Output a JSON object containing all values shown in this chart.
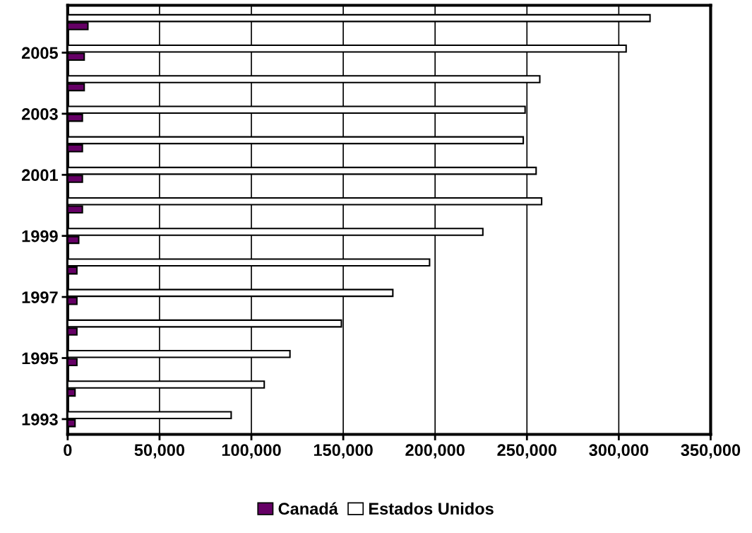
{
  "chart_data": {
    "type": "bar",
    "orientation": "horizontal",
    "categories": [
      null,
      "2005",
      null,
      "2003",
      null,
      "2001",
      null,
      "1999",
      null,
      "1997",
      null,
      "1995",
      null,
      "1993"
    ],
    "series": [
      {
        "name": "Canadá",
        "color": "#660066",
        "values": [
          11000,
          9000,
          9000,
          8000,
          8000,
          8000,
          8000,
          6000,
          5000,
          5000,
          5000,
          5000,
          4000,
          4000
        ]
      },
      {
        "name": "Estados Unidos",
        "color": "#ffffff",
        "values": [
          317000,
          304000,
          257000,
          249000,
          248000,
          255000,
          258000,
          226000,
          197000,
          177000,
          149000,
          121000,
          107000,
          89000
        ]
      }
    ],
    "xlim": [
      0,
      350000
    ],
    "xticks": [
      0,
      {
        "value": 50000,
        "label": "50,000"
      },
      {
        "value": 100000,
        "label": "100,000"
      },
      {
        "value": 150000,
        "label": "150,000"
      },
      {
        "value": 200000,
        "label": "200,000"
      },
      {
        "value": 250000,
        "label": "250,000"
      },
      {
        "value": 300000,
        "label": "300,000"
      },
      {
        "value": 350000,
        "label": "350,000"
      }
    ],
    "grid": "x",
    "legend": "bottom"
  }
}
